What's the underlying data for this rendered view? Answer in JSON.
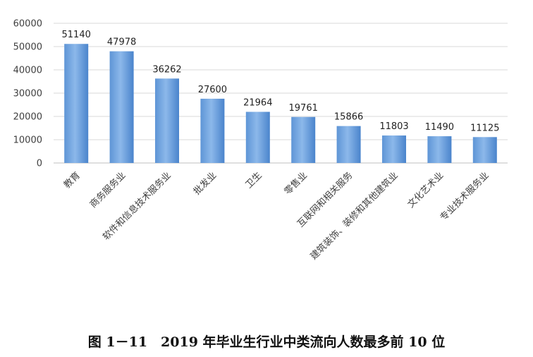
{
  "caption": "图 1－11　2019 年毕业生行业中类流向人数最多前 10 位",
  "colors": {
    "bar_light": "#8DB8E8",
    "bar_dark": "#3F7CC4",
    "grid": "#D9D9D9",
    "axis": "#BFBFBF"
  },
  "chart_data": {
    "type": "bar",
    "categories": [
      "教育",
      "商务服务业",
      "软件和信息技术服务业",
      "批发业",
      "卫生",
      "零售业",
      "互联网和相关服务",
      "建筑装饰、装修和其他建筑业",
      "文化艺术业",
      "专业技术服务业"
    ],
    "values": [
      51140,
      47978,
      36262,
      27600,
      21964,
      19761,
      15866,
      11803,
      11490,
      11125
    ],
    "yticks": [
      0,
      10000,
      20000,
      30000,
      40000,
      50000,
      60000
    ],
    "ylim": [
      0,
      60000
    ],
    "grid": true,
    "title": "图 1－11　2019 年毕业生行业中类流向人数最多前 10 位"
  }
}
